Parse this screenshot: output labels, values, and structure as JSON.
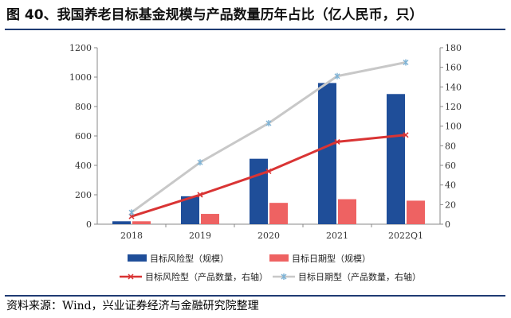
{
  "header": {
    "title": "图 40、我国养老目标基金规模与产品数量历年占比（亿人民币，只）"
  },
  "footer": {
    "source": "资料来源：Wind，兴业证券经济与金融研究院整理"
  },
  "colors": {
    "risk_bar": "#1f4e99",
    "date_bar": "#ee6262",
    "risk_line": "#d93434",
    "date_line": "#c8c8c8",
    "date_marker": "#7fb3d5",
    "rule": "#1f3b73"
  },
  "chart_data": {
    "type": "bar",
    "categories": [
      "2018",
      "2019",
      "2020",
      "2021",
      "2022Q1"
    ],
    "series": [
      {
        "name": "目标风险型（规模）",
        "kind": "bar",
        "axis": "left",
        "values": [
          20,
          190,
          445,
          960,
          885
        ]
      },
      {
        "name": "目标日期型（规模）",
        "kind": "bar",
        "axis": "left",
        "values": [
          20,
          70,
          145,
          170,
          160
        ]
      },
      {
        "name": "目标风险型（产品数量，右轴）",
        "kind": "line",
        "axis": "right",
        "values": [
          8,
          30,
          54,
          84,
          91
        ]
      },
      {
        "name": "目标日期型（产品数量，右轴）",
        "kind": "line",
        "axis": "right",
        "values": [
          12,
          63,
          103,
          151,
          165
        ]
      }
    ],
    "y_left": {
      "min": 0,
      "max": 1200,
      "ticks": [
        "0",
        "200",
        "400",
        "600",
        "800",
        "1000",
        "1200"
      ]
    },
    "y_right": {
      "min": 0,
      "max": 180,
      "ticks": [
        "0",
        "20",
        "40",
        "60",
        "80",
        "100",
        "120",
        "140",
        "160",
        "180"
      ]
    },
    "grid": false,
    "legend_position": "bottom"
  }
}
